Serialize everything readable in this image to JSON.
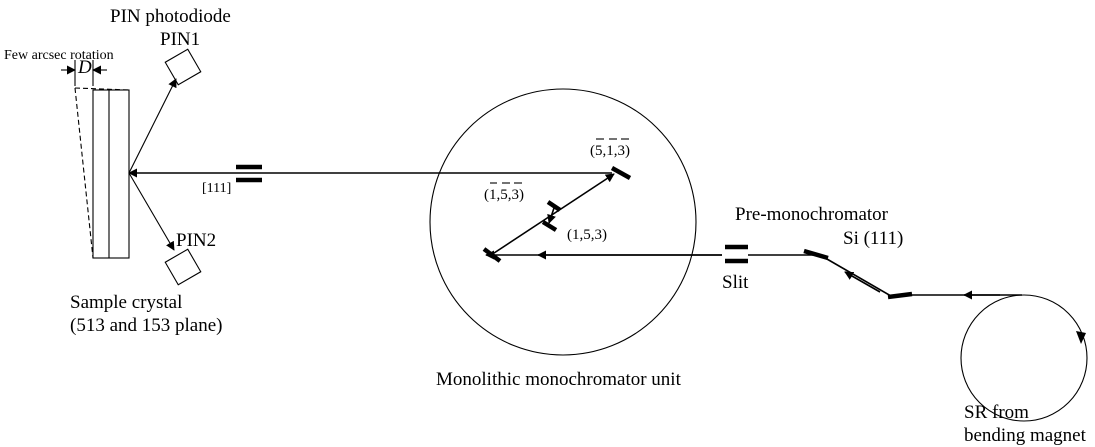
{
  "labels": {
    "pin_photodiode": "PIN photodiode",
    "pin1": "PIN1",
    "pin2": "PIN2",
    "rotation": "Few arcsec rotation",
    "d": "D",
    "direction": "[111]",
    "sample_line1": "Sample crystal",
    "sample_line2": "(513 and 153 plane)",
    "refl_a": "(5,1,3)",
    "refl_b": "(1,5,3)",
    "refl_c": "(1,5,3)",
    "premono_line1": "Pre-monochromator",
    "premono_line2": "Si (111)",
    "slit": "Slit",
    "mono_unit": "Monolithic  monochromator unit",
    "sr_line1": "SR from",
    "sr_line2": "bending magnet"
  }
}
